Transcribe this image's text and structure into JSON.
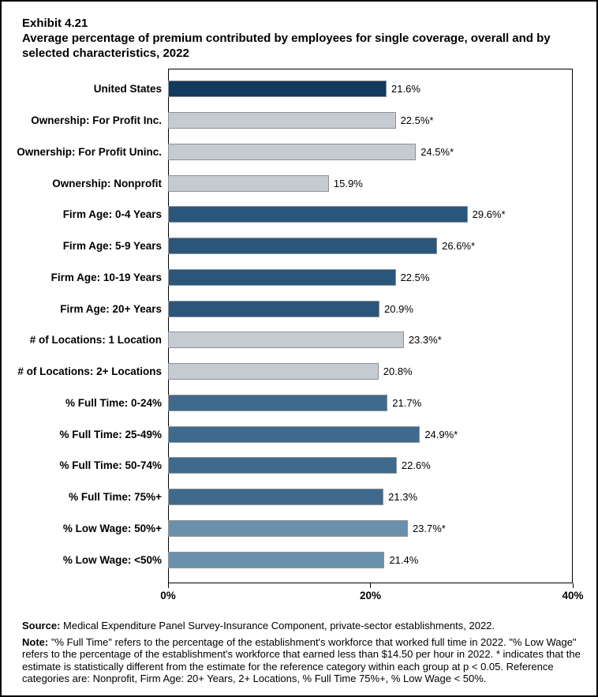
{
  "page": {
    "exhibit_label": "Exhibit 4.21",
    "title": "Average percentage of premium contributed by employees for single coverage, overall and by selected characteristics, 2022"
  },
  "chart_data": {
    "type": "bar",
    "orientation": "horizontal",
    "title": "Average percentage of premium contributed by employees for single coverage, overall and by selected characteristics, 2022",
    "xlabel": "",
    "ylabel": "",
    "xlim": [
      0,
      40
    ],
    "grid": false,
    "legend": "none",
    "xticks": [
      {
        "value": 0,
        "label": "0%"
      },
      {
        "value": 20,
        "label": "20%"
      },
      {
        "value": 40,
        "label": "40%"
      }
    ],
    "bars": [
      {
        "category": "United States",
        "value": 21.6,
        "label": "21.6%",
        "group": "united_states"
      },
      {
        "category": "Ownership: For Profit Inc.",
        "value": 22.5,
        "label": "22.5%*",
        "group": "ownership"
      },
      {
        "category": "Ownership: For Profit Uninc.",
        "value": 24.5,
        "label": "24.5%*",
        "group": "ownership"
      },
      {
        "category": "Ownership: Nonprofit",
        "value": 15.9,
        "label": "15.9%",
        "group": "ownership"
      },
      {
        "category": "Firm Age: 0-4 Years",
        "value": 29.6,
        "label": "29.6%*",
        "group": "firm_age"
      },
      {
        "category": "Firm Age: 5-9 Years",
        "value": 26.6,
        "label": "26.6%*",
        "group": "firm_age"
      },
      {
        "category": "Firm Age: 10-19 Years",
        "value": 22.5,
        "label": "22.5%",
        "group": "firm_age"
      },
      {
        "category": "Firm Age: 20+ Years",
        "value": 20.9,
        "label": "20.9%",
        "group": "firm_age"
      },
      {
        "category": "# of Locations: 1 Location",
        "value": 23.3,
        "label": "23.3%*",
        "group": "locations"
      },
      {
        "category": "# of Locations: 2+ Locations",
        "value": 20.8,
        "label": "20.8%",
        "group": "locations"
      },
      {
        "category": "% Full Time: 0-24%",
        "value": 21.7,
        "label": "21.7%",
        "group": "full_time"
      },
      {
        "category": "% Full Time: 25-49%",
        "value": 24.9,
        "label": "24.9%*",
        "group": "full_time"
      },
      {
        "category": "% Full Time: 50-74%",
        "value": 22.6,
        "label": "22.6%",
        "group": "full_time"
      },
      {
        "category": "% Full Time: 75%+",
        "value": 21.3,
        "label": "21.3%",
        "group": "full_time"
      },
      {
        "category": "% Low Wage: 50%+",
        "value": 23.7,
        "label": "23.7%*",
        "group": "low_wage"
      },
      {
        "category": "% Low Wage: <50%",
        "value": 21.4,
        "label": "21.4%",
        "group": "low_wage"
      }
    ]
  },
  "colors": {
    "united_states": "#113A5D",
    "ownership": "#C5CBD1",
    "locations": "#C5CBD1",
    "firm_age": "#2B567B",
    "full_time": "#3F6A8D",
    "low_wage": "#6B90AC",
    "bar_border": "#8A9197"
  },
  "footer": {
    "source_label": "Source:",
    "source_text": " Medical Expenditure Panel Survey-Insurance Component, private-sector establishments, 2022.",
    "note_label": "Note:",
    "note_text": " \"% Full Time\" refers to the percentage of the establishment's workforce that worked full time in 2022. \"% Low Wage\" refers to the percentage of the establishment's workforce that earned less than $14.50 per hour in 2022. * indicates that the estimate is statistically different from the estimate for the reference category within each group at p < 0.05.  Reference categories are: Nonprofit, Firm Age: 20+ Years, 2+ Locations, % Full Time 75%+, % Low Wage < 50%."
  }
}
